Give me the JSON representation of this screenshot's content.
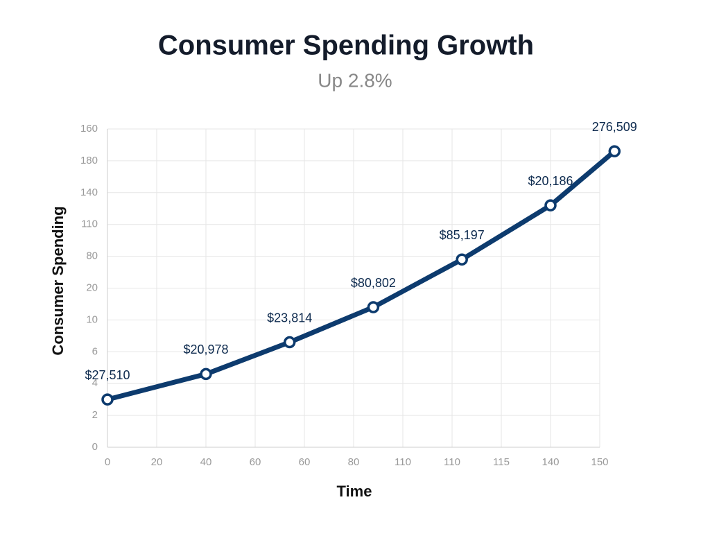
{
  "chart_data": {
    "type": "line",
    "title": "Consumer Spending Growth",
    "subtitle": "Up 2.8%",
    "x_label": "Time",
    "y_label": "Consumer Spending",
    "xlim": [
      0,
      10
    ],
    "ylim": [
      0,
      10
    ],
    "xticks": [
      {
        "value": 0,
        "label": "0"
      },
      {
        "value": 1,
        "label": "20"
      },
      {
        "value": 2,
        "label": "40"
      },
      {
        "value": 3,
        "label": "60"
      },
      {
        "value": 4,
        "label": "60"
      },
      {
        "value": 5,
        "label": "80"
      },
      {
        "value": 6,
        "label": "110"
      },
      {
        "value": 7,
        "label": "110"
      },
      {
        "value": 8,
        "label": "115"
      },
      {
        "value": 9,
        "label": "140"
      },
      {
        "value": 10,
        "label": "150"
      }
    ],
    "yticks": [
      {
        "value": 0,
        "label": "0"
      },
      {
        "value": 1,
        "label": "2"
      },
      {
        "value": 2,
        "label": "4"
      },
      {
        "value": 3,
        "label": "6"
      },
      {
        "value": 4,
        "label": "10"
      },
      {
        "value": 5,
        "label": "20"
      },
      {
        "value": 6,
        "label": "80"
      },
      {
        "value": 7,
        "label": "110"
      },
      {
        "value": 8,
        "label": "140"
      },
      {
        "value": 9,
        "label": "180"
      },
      {
        "value": 10,
        "label": "160"
      }
    ],
    "grid": true,
    "series": [
      {
        "color": "#0d3b6e",
        "x": [
          0,
          2,
          3.7,
          5.4,
          7.2,
          9,
          10.3
        ],
        "values": [
          1.5,
          2.3,
          3.3,
          4.4,
          5.9,
          7.6,
          9.3
        ],
        "point_labels": [
          "$27,510",
          "$20,978",
          "$23,814",
          "$80,802",
          "$85,197",
          "$20,186",
          "276,509"
        ]
      }
    ]
  }
}
